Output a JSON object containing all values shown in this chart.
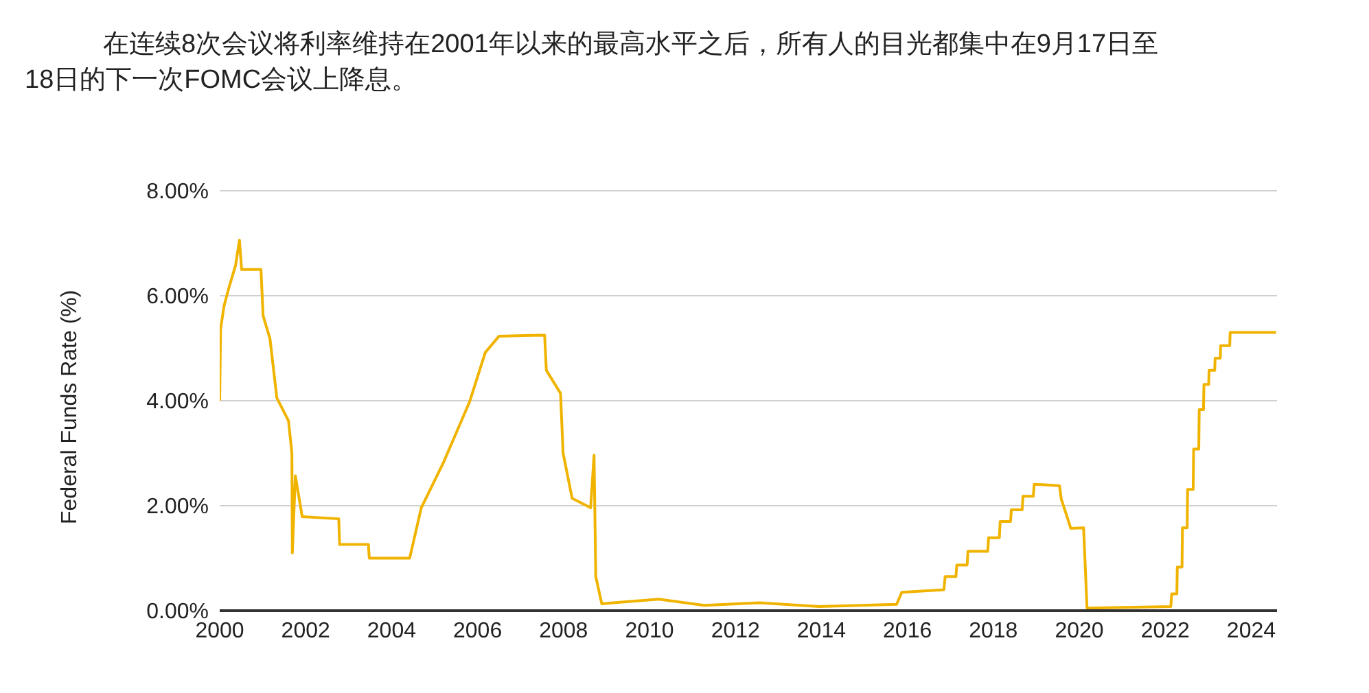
{
  "chart_data": {
    "type": "line",
    "title": "在连续8次会议将利率维持在2001年以来的最高水平之后，所有人的目光都集中在9月17日至18日的下一次FOMC会议上降息。",
    "ylabel": "Federal Funds Rate (%)",
    "x": [
      2000.0,
      2000.02,
      2000.1,
      2000.21,
      2000.37,
      2000.46,
      2000.51,
      2000.96,
      2001.01,
      2001.17,
      2001.33,
      2001.6,
      2001.68,
      2001.69,
      2001.76,
      2001.92,
      2002.77,
      2002.79,
      2003.46,
      2003.48,
      2004.42,
      2004.69,
      2005.21,
      2005.81,
      2006.18,
      2006.5,
      2007.56,
      2007.6,
      2007.93,
      2007.99,
      2008.2,
      2008.63,
      2008.71,
      2008.75,
      2008.89,
      2009.16,
      2010.22,
      2011.28,
      2012.56,
      2013.95,
      2015.75,
      2015.87,
      2016.85,
      2016.88,
      2017.13,
      2017.15,
      2017.39,
      2017.41,
      2017.87,
      2017.89,
      2018.14,
      2018.16,
      2018.4,
      2018.42,
      2018.67,
      2018.69,
      2018.93,
      2018.95,
      2019.54,
      2019.58,
      2019.7,
      2019.8,
      2020.1,
      2020.18,
      2022.13,
      2022.15,
      2022.27,
      2022.28,
      2022.39,
      2022.4,
      2022.51,
      2022.52,
      2022.65,
      2022.66,
      2022.78,
      2022.79,
      2022.89,
      2022.9,
      2023.01,
      2023.02,
      2023.15,
      2023.16,
      2023.28,
      2023.29,
      2023.5,
      2023.51,
      2024.58
    ],
    "series": [
      {
        "color": "#f0b400",
        "values": [
          4.0,
          5.36,
          5.8,
          6.14,
          6.58,
          7.06,
          6.5,
          6.5,
          5.62,
          5.18,
          4.05,
          3.62,
          3.0,
          1.1,
          2.57,
          1.79,
          1.75,
          1.26,
          1.26,
          1.0,
          1.0,
          1.96,
          2.83,
          3.97,
          4.92,
          5.23,
          5.25,
          4.58,
          4.14,
          3.0,
          2.14,
          1.96,
          2.96,
          0.65,
          0.13,
          0.15,
          0.22,
          0.1,
          0.15,
          0.08,
          0.12,
          0.35,
          0.4,
          0.65,
          0.65,
          0.87,
          0.87,
          1.13,
          1.13,
          1.39,
          1.39,
          1.7,
          1.7,
          1.92,
          1.92,
          2.18,
          2.18,
          2.41,
          2.38,
          2.13,
          1.83,
          1.57,
          1.58,
          0.05,
          0.08,
          0.32,
          0.32,
          0.83,
          0.83,
          1.58,
          1.58,
          2.31,
          2.31,
          3.08,
          3.08,
          3.83,
          3.83,
          4.31,
          4.31,
          4.58,
          4.58,
          4.81,
          4.81,
          5.05,
          5.05,
          5.3,
          5.3
        ]
      }
    ],
    "xlim": [
      2000,
      2024.6
    ],
    "xticks": [
      2000,
      2002,
      2004,
      2006,
      2008,
      2010,
      2012,
      2014,
      2016,
      2018,
      2020,
      2022,
      2024
    ],
    "ylim": [
      0,
      8
    ],
    "yticks": [
      {
        "value": 0,
        "label": "0.00%"
      },
      {
        "value": 2,
        "label": "2.00%"
      },
      {
        "value": 4,
        "label": "4.00%"
      },
      {
        "value": 6,
        "label": "6.00%"
      },
      {
        "value": 8,
        "label": "8.00%"
      }
    ],
    "grid": "y",
    "marker": "none",
    "line_style": "solid"
  }
}
